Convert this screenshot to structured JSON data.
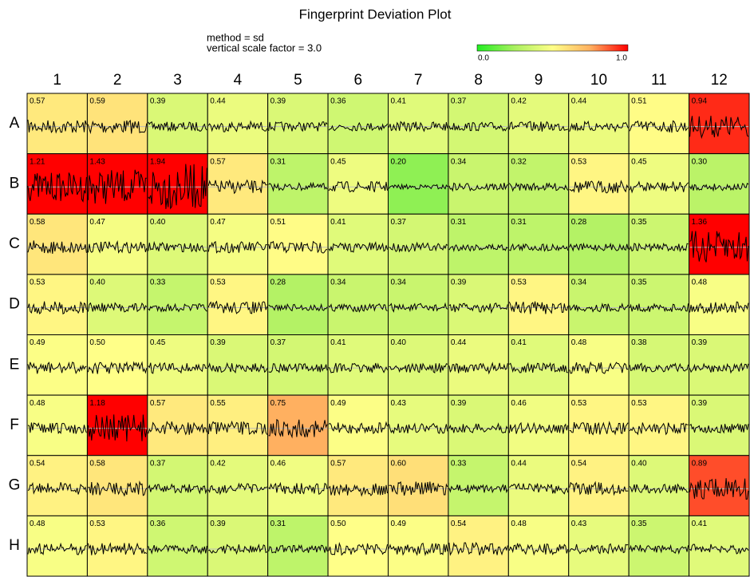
{
  "chart_data": {
    "type": "heatmap",
    "title": "Fingerprint Deviation Plot",
    "annotations": [
      "method = sd",
      "vertical scale factor = 3.0"
    ],
    "columns": [
      "1",
      "2",
      "3",
      "4",
      "5",
      "6",
      "7",
      "8",
      "9",
      "10",
      "11",
      "12"
    ],
    "rows": [
      "A",
      "B",
      "C",
      "D",
      "E",
      "F",
      "G",
      "H"
    ],
    "values": [
      [
        0.57,
        0.59,
        0.39,
        0.44,
        0.39,
        0.36,
        0.41,
        0.37,
        0.42,
        0.44,
        0.51,
        0.94
      ],
      [
        1.21,
        1.43,
        1.94,
        0.57,
        0.31,
        0.45,
        0.2,
        0.34,
        0.32,
        0.53,
        0.45,
        0.3
      ],
      [
        0.58,
        0.47,
        0.4,
        0.47,
        0.51,
        0.41,
        0.37,
        0.31,
        0.31,
        0.28,
        0.35,
        1.36
      ],
      [
        0.53,
        0.4,
        0.33,
        0.53,
        0.28,
        0.34,
        0.34,
        0.39,
        0.53,
        0.34,
        0.35,
        0.48
      ],
      [
        0.49,
        0.5,
        0.45,
        0.39,
        0.37,
        0.41,
        0.4,
        0.44,
        0.41,
        0.48,
        0.38,
        0.39
      ],
      [
        0.48,
        1.18,
        0.57,
        0.55,
        0.75,
        0.49,
        0.43,
        0.39,
        0.46,
        0.53,
        0.53,
        0.39
      ],
      [
        0.54,
        0.58,
        0.37,
        0.42,
        0.46,
        0.57,
        0.6,
        0.33,
        0.44,
        0.54,
        0.4,
        0.89
      ],
      [
        0.48,
        0.53,
        0.36,
        0.39,
        0.31,
        0.5,
        0.49,
        0.54,
        0.48,
        0.43,
        0.35,
        0.41
      ]
    ],
    "value_labels": [
      [
        "0.57",
        "0.59",
        "0.39",
        "0.44",
        "0.39",
        "0.36",
        "0.41",
        "0.37",
        "0.42",
        "0.44",
        "0.51",
        "0.94"
      ],
      [
        "1.21",
        "1.43",
        "1.94",
        "0.57",
        "0.31",
        "0.45",
        "0.20",
        "0.34",
        "0.32",
        "0.53",
        "0.45",
        "0.30"
      ],
      [
        "0.58",
        "0.47",
        "0.40",
        "0.47",
        "0.51",
        "0.41",
        "0.37",
        "0.31",
        "0.31",
        "0.28",
        "0.35",
        "1.36"
      ],
      [
        "0.53",
        "0.40",
        "0.33",
        "0.53",
        "0.28",
        "0.34",
        "0.34",
        "0.39",
        "0.53",
        "0.34",
        "0.35",
        "0.48"
      ],
      [
        "0.49",
        "0.50",
        "0.45",
        "0.39",
        "0.37",
        "0.41",
        "0.40",
        "0.44",
        "0.41",
        "0.48",
        "0.38",
        "0.39"
      ],
      [
        "0.48",
        "1.18",
        "0.57",
        "0.55",
        "0.75",
        "0.49",
        "0.43",
        "0.39",
        "0.46",
        "0.53",
        "0.53",
        "0.39"
      ],
      [
        "0.54",
        "0.58",
        "0.37",
        "0.42",
        "0.46",
        "0.57",
        "0.60",
        "0.33",
        "0.44",
        "0.54",
        "0.40",
        "0.89"
      ],
      [
        "0.48",
        "0.53",
        "0.36",
        "0.39",
        "0.31",
        "0.50",
        "0.49",
        "0.54",
        "0.48",
        "0.43",
        "0.35",
        "0.41"
      ]
    ],
    "colorbar_lim": [
      0,
      1
    ],
    "colorbar_ticks": [
      {
        "value": 0,
        "label": "0.0"
      },
      {
        "value": 1,
        "label": "1.0"
      }
    ],
    "colorscale": [
      "#22ee22",
      "#aaf060",
      "#ffff88",
      "#ffb060",
      "#ff0000"
    ]
  }
}
